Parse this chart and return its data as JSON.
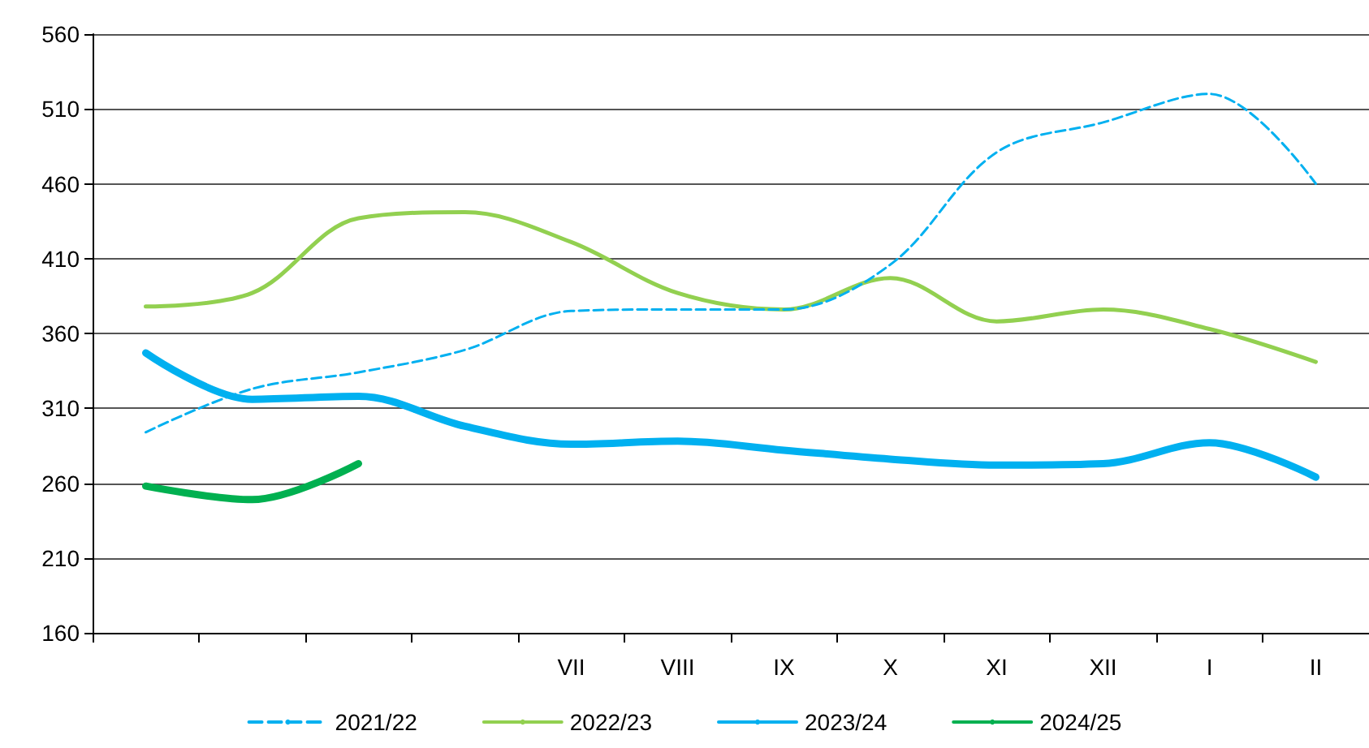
{
  "chart_data": {
    "type": "line",
    "categories": [
      null,
      null,
      null,
      null,
      "VII",
      "VIII",
      "IX",
      "X",
      "XI",
      "XII",
      "I",
      "II"
    ],
    "series": [
      {
        "name": "2021/22",
        "color": "#00b0f0",
        "line_style": "dashed",
        "values": [
          294,
          323,
          334,
          349,
          375,
          376,
          376,
          406,
          481,
          501,
          520,
          460
        ]
      },
      {
        "name": "2022/23",
        "color": "#92d050",
        "line_style": "solid",
        "values": [
          378,
          387,
          437,
          441,
          421,
          387,
          376,
          397,
          368,
          376,
          363,
          341
        ]
      },
      {
        "name": "2023/24",
        "color": "#00b0f0",
        "line_style": "solid",
        "values": [
          347,
          316,
          318,
          298,
          286,
          288,
          282,
          276,
          272,
          273,
          287,
          264
        ]
      },
      {
        "name": "2024/25",
        "color": "#00b050",
        "line_style": "solid",
        "values": [
          258,
          249,
          273,
          null,
          null,
          null,
          null,
          null,
          null,
          null,
          null,
          null
        ]
      }
    ],
    "ylim": [
      160,
      560
    ],
    "yticks": [
      160,
      210,
      260,
      310,
      360,
      410,
      460,
      510,
      560
    ],
    "grid": "y",
    "legend": "bottom",
    "marker": "none"
  }
}
